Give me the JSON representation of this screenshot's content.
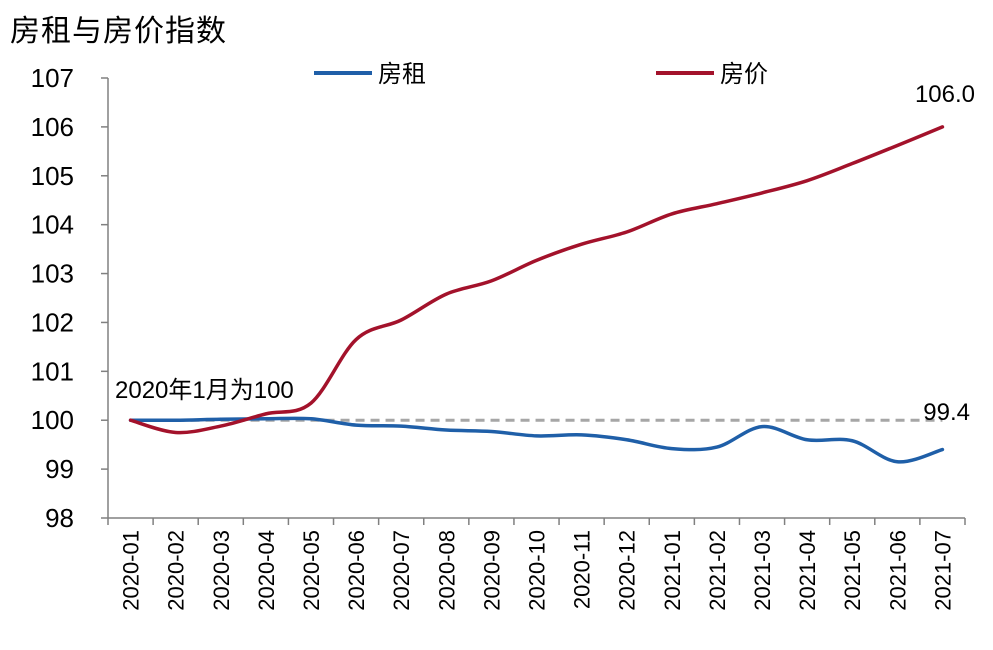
{
  "title": "房租与房价指数",
  "chart_data": {
    "type": "line",
    "title": "房租与房价指数",
    "xlabel": "",
    "ylabel": "",
    "ylim": [
      98,
      107
    ],
    "yticks": [
      98,
      99,
      100,
      101,
      102,
      103,
      104,
      105,
      106,
      107
    ],
    "grid": false,
    "legend_position": "top",
    "categories": [
      "2020-01",
      "2020-02",
      "2020-03",
      "2020-04",
      "2020-05",
      "2020-06",
      "2020-07",
      "2020-08",
      "2020-09",
      "2020-10",
      "2020-11",
      "2020-12",
      "2021-01",
      "2021-02",
      "2021-03",
      "2021-04",
      "2021-05",
      "2021-06",
      "2021-07"
    ],
    "series": [
      {
        "name": "房租",
        "color": "#1f5fa8",
        "values": [
          100.0,
          100.0,
          100.02,
          100.03,
          100.03,
          99.9,
          99.88,
          99.8,
          99.77,
          99.68,
          99.7,
          99.6,
          99.42,
          99.45,
          99.87,
          99.6,
          99.58,
          99.15,
          99.4
        ]
      },
      {
        "name": "房价",
        "color": "#a3122b",
        "values": [
          100.0,
          99.75,
          99.88,
          100.13,
          100.35,
          101.65,
          102.05,
          102.58,
          102.85,
          103.27,
          103.6,
          103.85,
          104.22,
          104.43,
          104.65,
          104.9,
          105.25,
          105.62,
          106.0
        ]
      }
    ],
    "baseline": {
      "value": 100,
      "color": "#a6a6a6",
      "style": "dashed"
    },
    "annotations": {
      "baseline_note": "2020年1月为100",
      "end_price": "106.0",
      "end_rent": "99.4"
    }
  }
}
